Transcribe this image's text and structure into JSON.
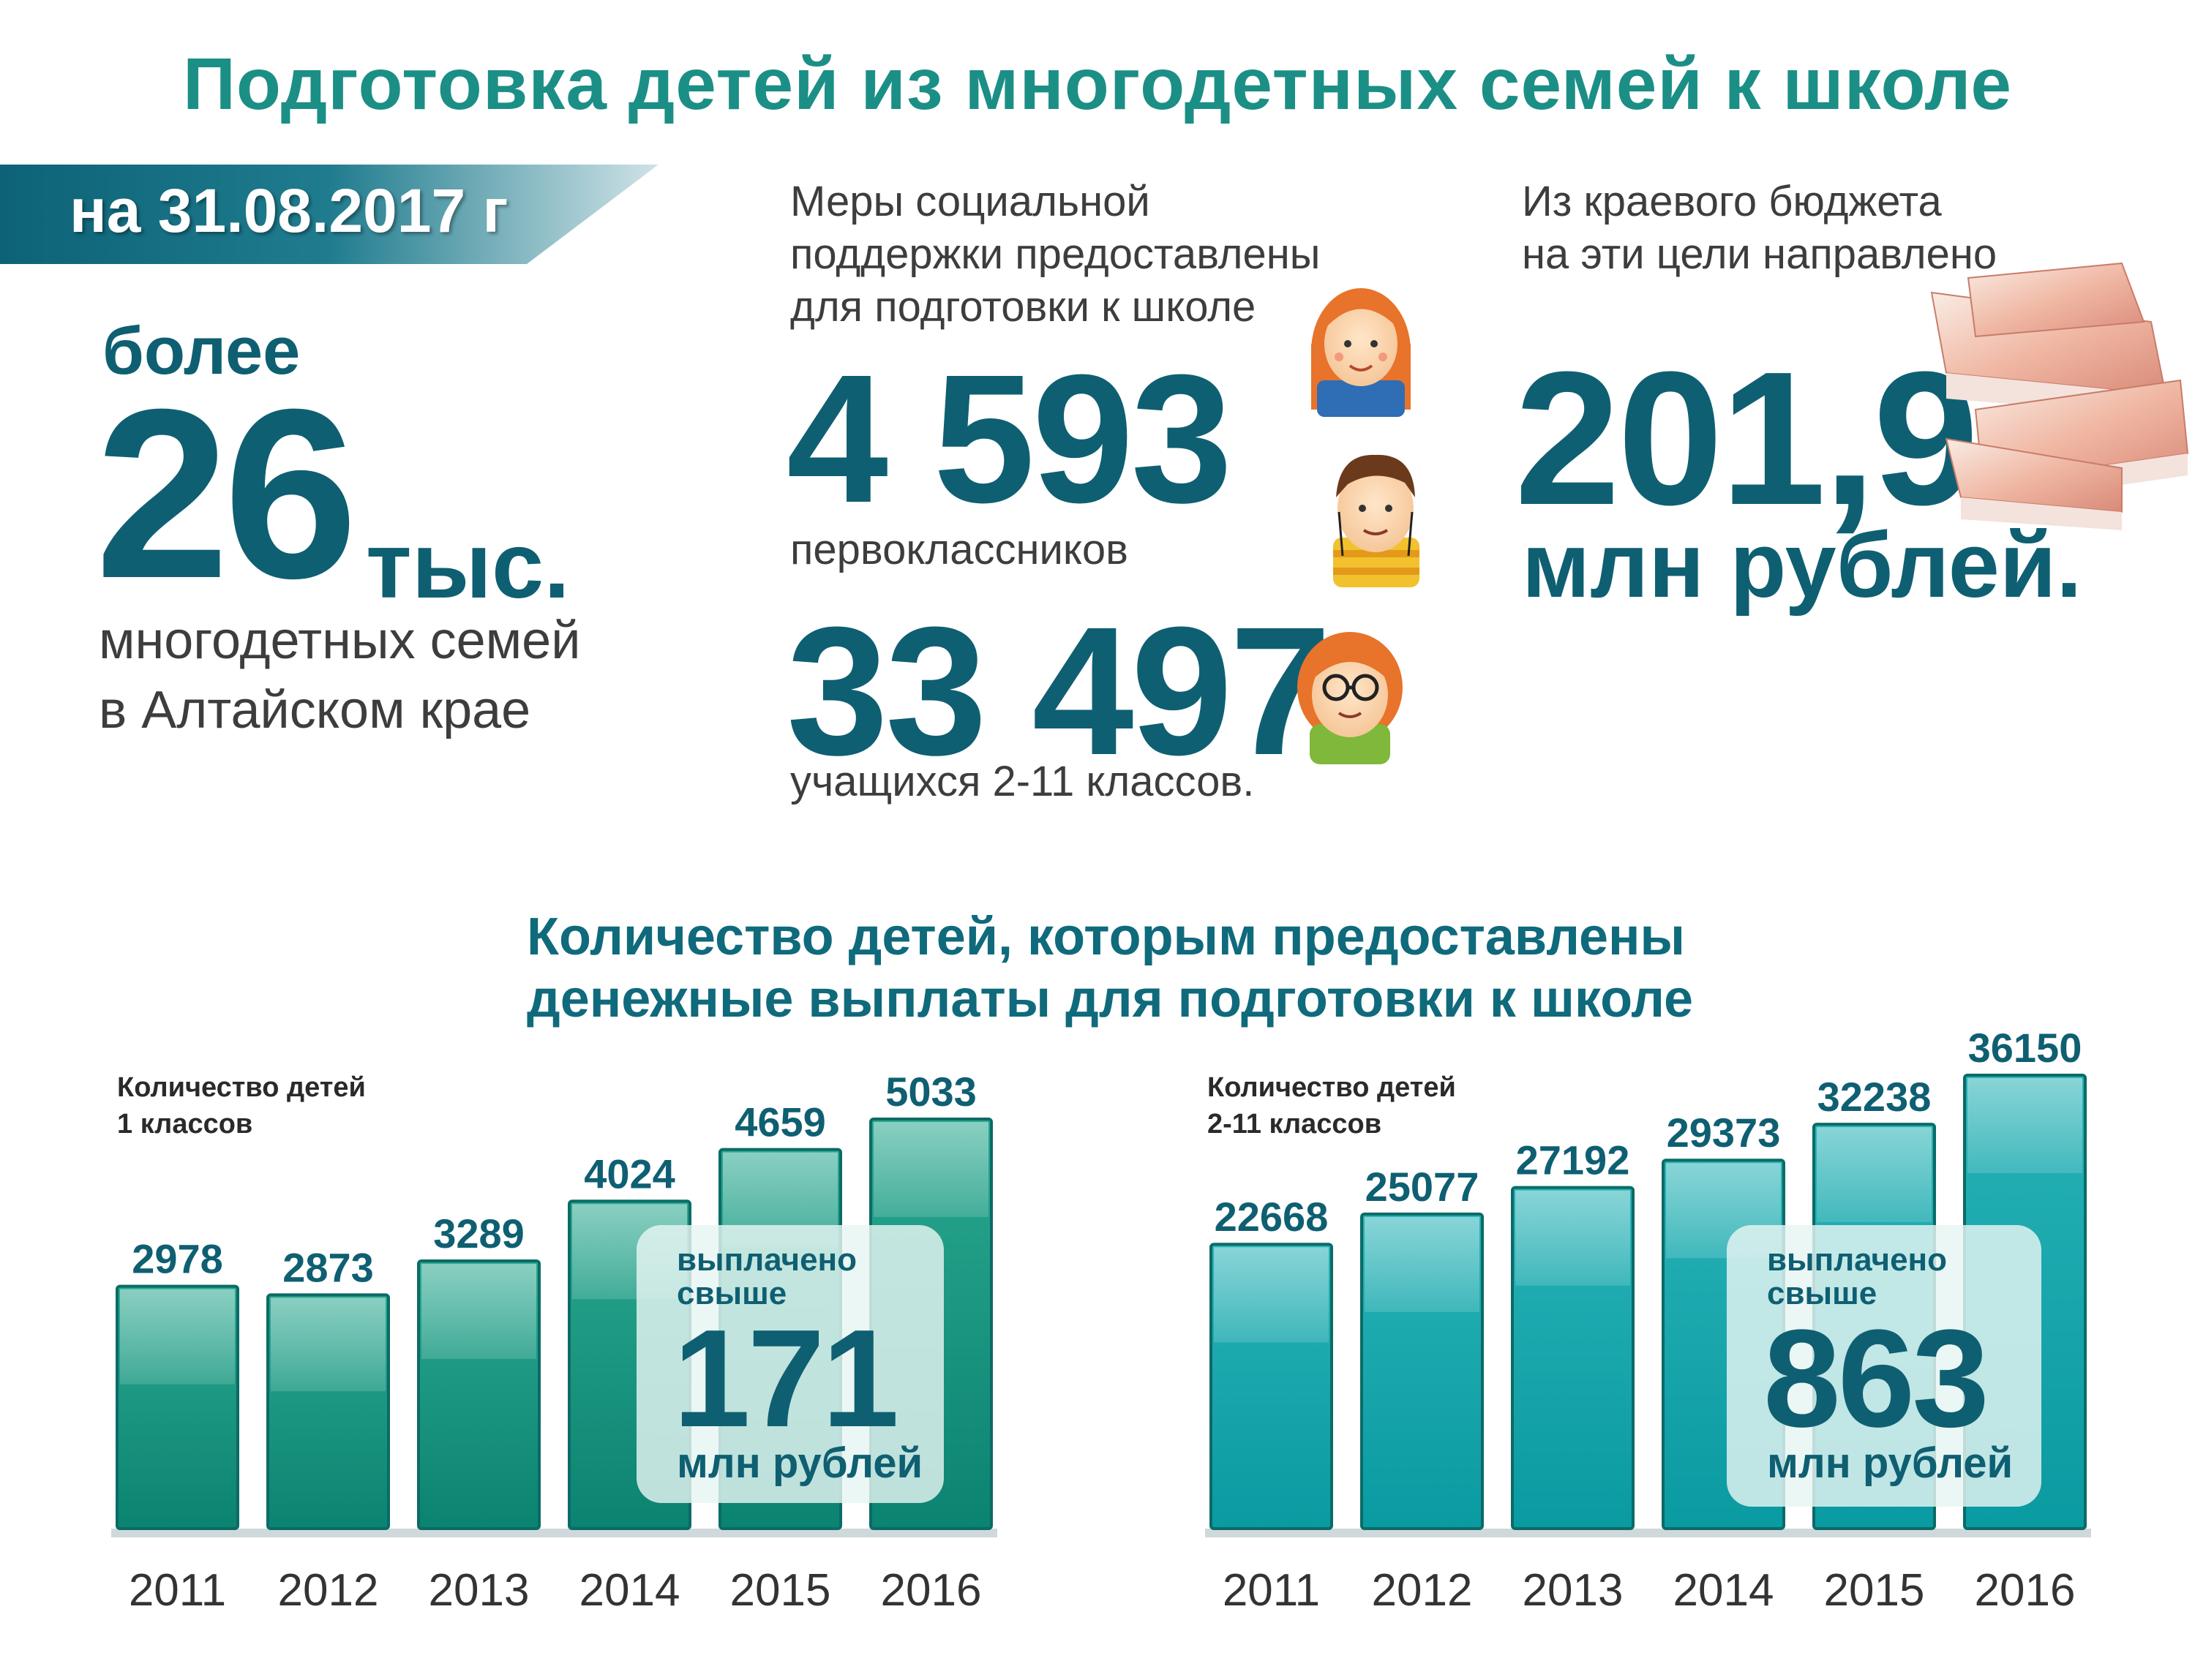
{
  "title": "Подготовка детей из многодетных семей к школе",
  "date_banner": "на 31.08.2017 г",
  "families": {
    "prefix": "более",
    "number": "26",
    "unit": "тыс.",
    "line1": "многодетных семей",
    "line2": "в Алтайском крае"
  },
  "support": {
    "line1": "Меры социальной",
    "line2": "поддержки предоставлены",
    "line3": "для подготовки к школе",
    "first_graders_number": "4 593",
    "first_graders_label": "первоклассников",
    "students_number": "33 497",
    "students_label": "учащихся 2-11 классов."
  },
  "budget": {
    "line1": "Из краевого бюджета",
    "line2": "на эти цели направлено",
    "number": "201,9",
    "unit": "млн рублей."
  },
  "section_title": {
    "line1": "Количество детей, которым предоставлены",
    "line2": "денежные выплаты для подготовки к школе"
  },
  "colors": {
    "title": "#1b8f85",
    "dark": "#0f5f72",
    "bar_left": "#0f8a78",
    "bar_right": "#10a0a6"
  },
  "chart_data": [
    {
      "type": "bar",
      "label_line1": "Количество детей",
      "label_line2": "1 классов",
      "categories": [
        "2011",
        "2012",
        "2013",
        "2014",
        "2015",
        "2016"
      ],
      "values": [
        2978,
        2873,
        3289,
        4024,
        4659,
        5033
      ],
      "ylim": [
        0,
        5033
      ],
      "panel": {
        "line1": "выплачено",
        "line2": "свыше",
        "number": "171",
        "unit": "млн рублей"
      }
    },
    {
      "type": "bar",
      "label_line1": "Количество детей",
      "label_line2": "2-11 классов",
      "categories": [
        "2011",
        "2012",
        "2013",
        "2014",
        "2015",
        "2016"
      ],
      "values": [
        22668,
        25077,
        27192,
        29373,
        32238,
        36150
      ],
      "ylim": [
        0,
        36150
      ],
      "panel": {
        "line1": "выплачено",
        "line2": "свыше",
        "number": "863",
        "unit": "млн рублей"
      }
    }
  ]
}
